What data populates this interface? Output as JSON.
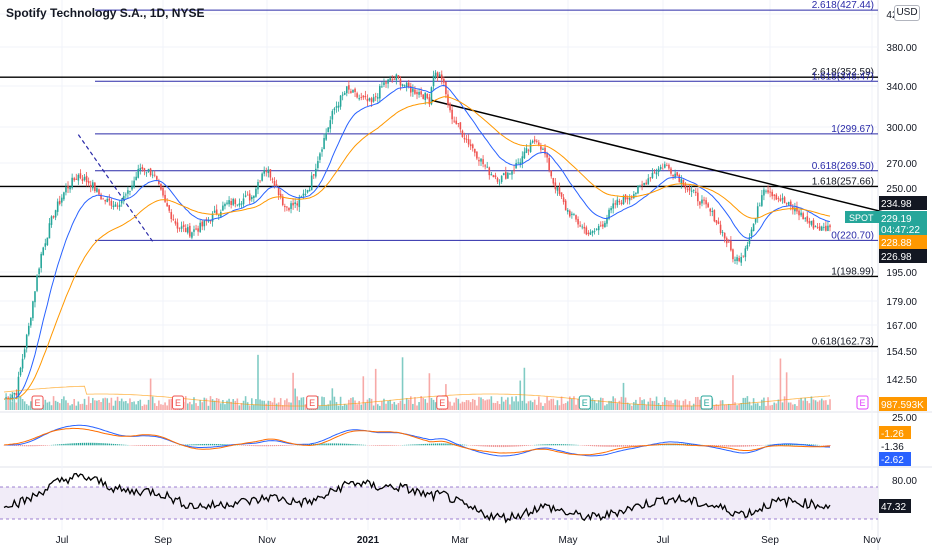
{
  "header": {
    "title": "Spotify Technology S.A., 1D, NYSE",
    "currency": "USD"
  },
  "colors": {
    "candle_up": "#26a69a",
    "candle_down": "#ef5350",
    "ema_fast": "#2962ff",
    "ema_slow": "#ff9800",
    "hline": "#000000",
    "fib": "#2a2aa8",
    "macd_line": "#2962ff",
    "macd_signal": "#ff6d00",
    "rsi_line": "#000000",
    "rsi_band": "#7e57c2",
    "spot_badge": "#26a69a",
    "black_badge": "#131722",
    "orange_badge": "#ff9800",
    "blue_badge": "#2962ff"
  },
  "chart_data": {
    "type": "candlestick",
    "symbol": "SPOT",
    "x_ticks": [
      "Jul",
      "Sep",
      "Nov",
      "2021",
      "Mar",
      "May",
      "Jul",
      "Sep",
      "Nov"
    ],
    "price_ticks": [
      "420.00",
      "380.00",
      "340.00",
      "300.00",
      "270.00",
      "250.00",
      "195.00",
      "179.00",
      "167.00",
      "154.50",
      "142.50"
    ],
    "price_close_anchors": [
      [
        0,
        140
      ],
      [
        6,
        143
      ],
      [
        12,
        172
      ],
      [
        18,
        212
      ],
      [
        24,
        238
      ],
      [
        30,
        256
      ],
      [
        36,
        266
      ],
      [
        42,
        260
      ],
      [
        48,
        248
      ],
      [
        54,
        245
      ],
      [
        60,
        252
      ],
      [
        66,
        272
      ],
      [
        72,
        268
      ],
      [
        78,
        245
      ],
      [
        84,
        230
      ],
      [
        90,
        226
      ],
      [
        96,
        230
      ],
      [
        102,
        238
      ],
      [
        108,
        245
      ],
      [
        114,
        248
      ],
      [
        120,
        250
      ],
      [
        126,
        272
      ],
      [
        130,
        265
      ],
      [
        136,
        243
      ],
      [
        142,
        245
      ],
      [
        148,
        258
      ],
      [
        154,
        290
      ],
      [
        160,
        322
      ],
      [
        166,
        340
      ],
      [
        172,
        332
      ],
      [
        178,
        327
      ],
      [
        184,
        346
      ],
      [
        190,
        352
      ],
      [
        196,
        341
      ],
      [
        202,
        337
      ],
      [
        206,
        330
      ],
      [
        208,
        357
      ],
      [
        212,
        352
      ],
      [
        216,
        318
      ],
      [
        222,
        300
      ],
      [
        228,
        285
      ],
      [
        234,
        270
      ],
      [
        240,
        263
      ],
      [
        246,
        270
      ],
      [
        252,
        282
      ],
      [
        258,
        296
      ],
      [
        262,
        282
      ],
      [
        266,
        261
      ],
      [
        272,
        242
      ],
      [
        278,
        232
      ],
      [
        284,
        224
      ],
      [
        290,
        232
      ],
      [
        296,
        245
      ],
      [
        302,
        250
      ],
      [
        308,
        256
      ],
      [
        314,
        268
      ],
      [
        320,
        274
      ],
      [
        326,
        266
      ],
      [
        332,
        255
      ],
      [
        338,
        246
      ],
      [
        344,
        236
      ],
      [
        350,
        220
      ],
      [
        354,
        208
      ],
      [
        358,
        213
      ],
      [
        364,
        235
      ],
      [
        368,
        258
      ],
      [
        372,
        253
      ],
      [
        378,
        246
      ],
      [
        384,
        240
      ],
      [
        390,
        232
      ],
      [
        396,
        228
      ],
      [
        400,
        229.19
      ]
    ],
    "ema_fast_label": "228.88",
    "ema_slow_label": "226.98",
    "current_price": "229.19",
    "countdown": "04:47:22",
    "badge_234": "234.98",
    "horizontal_lines": [
      {
        "price": 352.59,
        "label": ""
      },
      {
        "price": 257.66,
        "label": ""
      },
      {
        "price": 198.99,
        "label": ""
      },
      {
        "price": 162.73,
        "label": ""
      }
    ],
    "fib_levels": [
      {
        "price": 427.44,
        "label": "2.618(427.44)"
      },
      {
        "price": 352.59,
        "label": "2.618(352.59)"
      },
      {
        "price": 348.47,
        "label": "1.618(348.47)"
      },
      {
        "price": 299.67,
        "label": "1(299.67)"
      },
      {
        "price": 269.5,
        "label": "0.618(269.50)"
      },
      {
        "price": 257.66,
        "label": "1.618(257.66)"
      },
      {
        "price": 220.7,
        "label": "0(220.70)"
      },
      {
        "price": 198.99,
        "label": "1(198.99)"
      },
      {
        "price": 162.73,
        "label": "0.618(162.73)"
      }
    ],
    "trendline": {
      "from": [
        207,
        330
      ],
      "to": [
        430,
        238
      ]
    },
    "dashed_trendline": {
      "from": [
        36,
        299
      ],
      "to": [
        72,
        220
      ]
    },
    "earnings_markers": [
      16,
      84,
      149,
      212,
      281,
      340,
      420
    ],
    "volume_label": "987.593K",
    "macd_values": [
      "-1.26",
      "-1.36",
      "-2.62"
    ],
    "macd_tick": "25.00",
    "rsi_value": "47.32",
    "rsi_ticks": [
      "80.00"
    ],
    "rsi_band": [
      30,
      70
    ]
  }
}
